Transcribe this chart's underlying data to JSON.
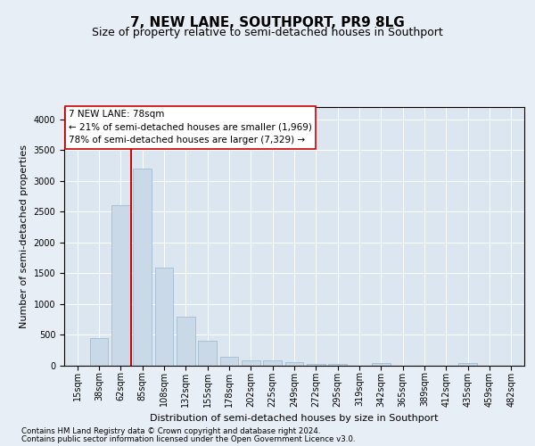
{
  "title": "7, NEW LANE, SOUTHPORT, PR9 8LG",
  "subtitle": "Size of property relative to semi-detached houses in Southport",
  "xlabel": "Distribution of semi-detached houses by size in Southport",
  "ylabel": "Number of semi-detached properties",
  "categories": [
    "15sqm",
    "38sqm",
    "62sqm",
    "85sqm",
    "108sqm",
    "132sqm",
    "155sqm",
    "178sqm",
    "202sqm",
    "225sqm",
    "249sqm",
    "272sqm",
    "295sqm",
    "319sqm",
    "342sqm",
    "365sqm",
    "389sqm",
    "412sqm",
    "435sqm",
    "459sqm",
    "482sqm"
  ],
  "values": [
    5,
    450,
    2600,
    3200,
    1600,
    800,
    400,
    150,
    80,
    80,
    60,
    35,
    30,
    0,
    50,
    0,
    0,
    0,
    50,
    0,
    0
  ],
  "bar_color": "#c9d9e8",
  "bar_edge_color": "#a0bcd0",
  "bar_linewidth": 0.6,
  "vline_color": "#cc0000",
  "vline_linewidth": 1.4,
  "vline_x": 2.5,
  "annotation_text": "7 NEW LANE: 78sqm\n← 21% of semi-detached houses are smaller (1,969)\n78% of semi-detached houses are larger (7,329) →",
  "annotation_box_color": "#ffffff",
  "annotation_box_edge_color": "#cc0000",
  "ylim": [
    0,
    4200
  ],
  "yticks": [
    0,
    500,
    1000,
    1500,
    2000,
    2500,
    3000,
    3500,
    4000
  ],
  "footnote1": "Contains HM Land Registry data © Crown copyright and database right 2024.",
  "footnote2": "Contains public sector information licensed under the Open Government Licence v3.0.",
  "bg_color": "#e8eef5",
  "plot_bg_color": "#dce6f0",
  "title_fontsize": 11,
  "subtitle_fontsize": 9,
  "axis_label_fontsize": 8,
  "tick_fontsize": 7,
  "annotation_fontsize": 7.5,
  "footnote_fontsize": 6.2
}
